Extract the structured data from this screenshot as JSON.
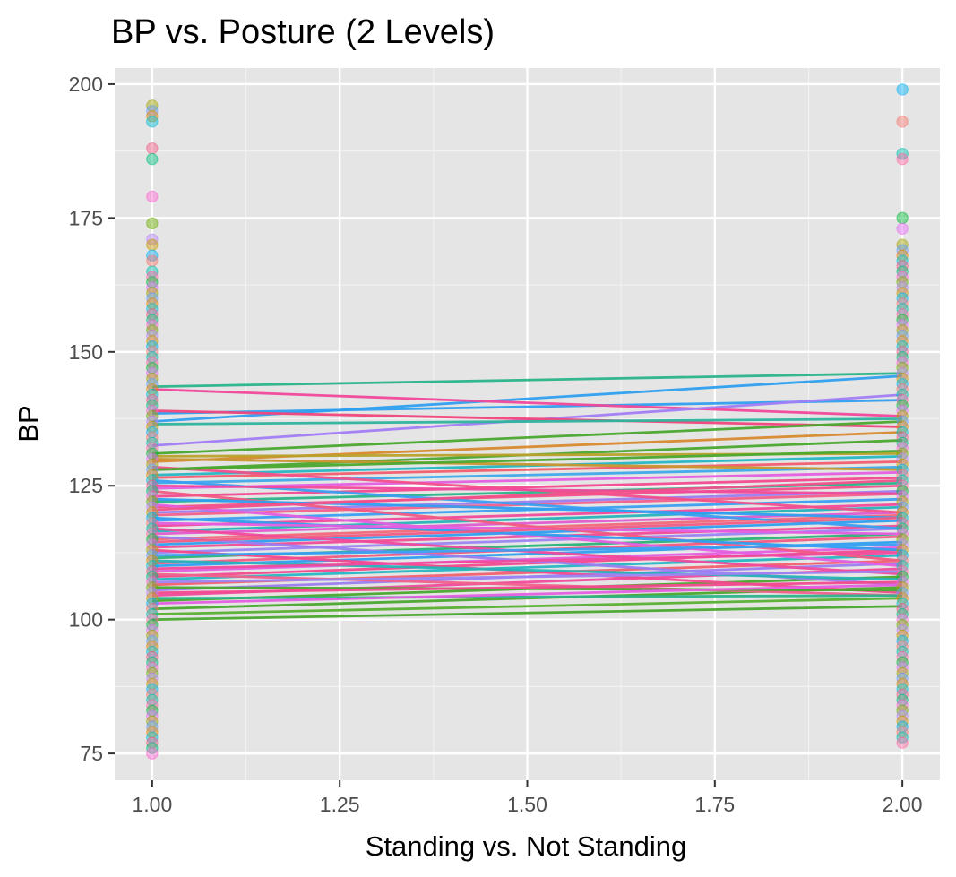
{
  "chart_data": {
    "type": "line",
    "title": "BP vs. Posture (2 Levels)",
    "xlabel": "Standing vs. Not Standing",
    "ylabel": "BP",
    "xlim": [
      0.95,
      2.05
    ],
    "ylim": [
      70,
      203
    ],
    "x_ticks": [
      "1.00",
      "1.25",
      "1.50",
      "1.75",
      "2.00"
    ],
    "y_ticks": [
      "75",
      "100",
      "125",
      "150",
      "175",
      "200"
    ],
    "grid": true,
    "legend": "none",
    "x": [
      1,
      2
    ],
    "series": [
      {
        "values": [
          143.5,
          146.0
        ],
        "color": "#2ab38a"
      },
      {
        "values": [
          137.0,
          145.5
        ],
        "color": "#2f9ff0"
      },
      {
        "values": [
          138.5,
          141.0
        ],
        "color": "#2f9ff0"
      },
      {
        "values": [
          143.0,
          138.0
        ],
        "color": "#f0489a"
      },
      {
        "values": [
          132.5,
          142.0
        ],
        "color": "#a27df5"
      },
      {
        "values": [
          139.0,
          136.0
        ],
        "color": "#f0467c"
      },
      {
        "values": [
          131.0,
          137.0
        ],
        "color": "#4aa82e"
      },
      {
        "values": [
          136.5,
          137.5
        ],
        "color": "#2eb39e"
      },
      {
        "values": [
          129.5,
          135.0
        ],
        "color": "#d88a2e"
      },
      {
        "values": [
          128.0,
          133.5
        ],
        "color": "#4aa82e"
      },
      {
        "values": [
          130.5,
          131.0
        ],
        "color": "#b8a12a"
      },
      {
        "values": [
          127.0,
          130.5
        ],
        "color": "#26b7c4"
      },
      {
        "values": [
          126.5,
          129.5
        ],
        "color": "#f25c6e"
      },
      {
        "values": [
          125.5,
          128.5
        ],
        "color": "#3fa9ea"
      },
      {
        "values": [
          124.5,
          127.5
        ],
        "color": "#e45ee0"
      },
      {
        "values": [
          123.0,
          126.5
        ],
        "color": "#f24a8e"
      },
      {
        "values": [
          122.0,
          125.5
        ],
        "color": "#2bb38a"
      },
      {
        "values": [
          121.0,
          125.0
        ],
        "color": "#f2508a"
      },
      {
        "values": [
          120.0,
          124.0
        ],
        "color": "#9b7df0"
      },
      {
        "values": [
          119.5,
          123.5
        ],
        "color": "#f2608c"
      },
      {
        "values": [
          118.5,
          122.5
        ],
        "color": "#3a9ff2"
      },
      {
        "values": [
          117.5,
          121.5
        ],
        "color": "#f04a9c"
      },
      {
        "values": [
          116.5,
          121.0
        ],
        "color": "#26b3b8"
      },
      {
        "values": [
          116.0,
          120.0
        ],
        "color": "#e25ad0"
      },
      {
        "values": [
          115.0,
          119.5
        ],
        "color": "#f2687a"
      },
      {
        "values": [
          114.0,
          118.5
        ],
        "color": "#2f9ff0"
      },
      {
        "values": [
          113.5,
          117.5
        ],
        "color": "#f04c96"
      },
      {
        "values": [
          112.5,
          117.0
        ],
        "color": "#9b84f2"
      },
      {
        "values": [
          111.5,
          116.0
        ],
        "color": "#2bb378"
      },
      {
        "values": [
          110.5,
          115.5
        ],
        "color": "#f25a82"
      },
      {
        "values": [
          110.0,
          114.5
        ],
        "color": "#2f9ff0"
      },
      {
        "values": [
          109.0,
          113.5
        ],
        "color": "#e45ee0"
      },
      {
        "values": [
          108.0,
          113.0
        ],
        "color": "#f24a8e"
      },
      {
        "values": [
          107.5,
          112.0
        ],
        "color": "#26b7c4"
      },
      {
        "values": [
          106.5,
          111.0
        ],
        "color": "#f26070"
      },
      {
        "values": [
          105.5,
          110.5
        ],
        "color": "#9b7df0"
      },
      {
        "values": [
          104.5,
          109.5
        ],
        "color": "#f04a9c"
      },
      {
        "values": [
          103.5,
          108.0
        ],
        "color": "#4aa82e"
      },
      {
        "values": [
          102.0,
          106.0
        ],
        "color": "#4aa82e"
      },
      {
        "values": [
          101.0,
          104.0
        ],
        "color": "#58b030"
      },
      {
        "values": [
          100.0,
          102.5
        ],
        "color": "#4aa82e"
      },
      {
        "values": [
          128.5,
          120.0
        ],
        "color": "#f2508a"
      },
      {
        "values": [
          126.0,
          117.0
        ],
        "color": "#3a9ff2"
      },
      {
        "values": [
          124.0,
          111.0
        ],
        "color": "#f25a82"
      },
      {
        "values": [
          121.5,
          110.0
        ],
        "color": "#e45ee0"
      },
      {
        "values": [
          119.0,
          113.0
        ],
        "color": "#2f9ff0"
      },
      {
        "values": [
          117.0,
          108.5
        ],
        "color": "#f04a9c"
      },
      {
        "values": [
          115.5,
          106.5
        ],
        "color": "#9b7df0"
      },
      {
        "values": [
          113.0,
          105.0
        ],
        "color": "#f24a8e"
      },
      {
        "values": [
          111.0,
          107.5
        ],
        "color": "#26b3b8"
      },
      {
        "values": [
          108.5,
          104.5
        ],
        "color": "#f2608c"
      },
      {
        "values": [
          106.0,
          105.5
        ],
        "color": "#4aa82e"
      },
      {
        "values": [
          104.0,
          104.5
        ],
        "color": "#2bb38a"
      },
      {
        "values": [
          130.0,
          128.0
        ],
        "color": "#c8962e"
      },
      {
        "values": [
          128.0,
          131.5
        ],
        "color": "#4aa82e"
      },
      {
        "values": [
          125.0,
          123.5
        ],
        "color": "#f04a9c"
      },
      {
        "values": [
          122.5,
          119.0
        ],
        "color": "#2f9ff0"
      },
      {
        "values": [
          120.5,
          126.0
        ],
        "color": "#f2508a"
      },
      {
        "values": [
          118.0,
          116.0
        ],
        "color": "#e45ee0"
      },
      {
        "values": [
          114.5,
          119.0
        ],
        "color": "#f25a82"
      },
      {
        "values": [
          112.0,
          114.0
        ],
        "color": "#3a9ff2"
      },
      {
        "values": [
          109.5,
          112.5
        ],
        "color": "#f04a9c"
      },
      {
        "values": [
          107.0,
          109.0
        ],
        "color": "#9b84f2"
      },
      {
        "values": [
          105.0,
          107.0
        ],
        "color": "#f24a8e"
      },
      {
        "values": [
          103.0,
          106.5
        ],
        "color": "#e45ee0"
      }
    ],
    "points_x1": [
      196,
      195,
      194,
      193,
      188,
      186,
      179,
      174,
      171,
      170,
      168,
      167,
      165,
      164,
      163,
      162,
      161,
      160,
      159,
      158,
      157,
      156,
      155,
      154,
      153,
      152,
      151,
      150,
      149,
      148,
      147,
      146,
      145,
      144,
      143,
      142,
      141,
      140,
      139,
      138,
      137,
      136,
      135,
      134,
      133,
      132,
      131,
      130,
      129,
      128,
      127,
      126,
      125,
      124,
      123,
      122,
      121,
      120,
      119,
      118,
      117,
      116,
      115,
      114,
      113,
      112,
      111,
      110,
      109,
      108,
      107,
      106,
      105,
      104,
      103,
      102,
      101,
      100,
      99,
      98,
      97,
      96,
      95,
      94,
      93,
      92,
      91,
      90,
      89,
      88,
      87,
      86,
      85,
      84,
      83,
      82,
      81,
      80,
      79,
      78,
      77,
      76,
      75
    ],
    "points_x2": [
      199,
      193,
      187,
      186,
      175,
      173,
      170,
      169,
      168,
      167,
      166,
      165,
      164,
      163,
      162,
      161,
      160,
      159,
      158,
      157,
      156,
      155,
      154,
      153,
      152,
      151,
      150,
      149,
      148,
      147,
      146,
      145,
      144,
      143,
      142,
      141,
      140,
      139,
      138,
      137,
      136,
      135,
      134,
      133,
      132,
      131,
      130,
      129,
      128,
      127,
      126,
      125,
      124,
      123,
      122,
      121,
      120,
      119,
      118,
      117,
      116,
      115,
      114,
      113,
      112,
      111,
      110,
      109,
      108,
      107,
      106,
      105,
      104,
      103,
      102,
      101,
      100,
      99,
      98,
      97,
      96,
      95,
      94,
      93,
      92,
      91,
      90,
      89,
      88,
      87,
      86,
      85,
      84,
      83,
      82,
      81,
      80,
      79,
      78,
      77
    ],
    "palette": [
      "#f8766d",
      "#e58700",
      "#c99800",
      "#a3a500",
      "#6bb100",
      "#00ba38",
      "#00bf7d",
      "#00c0af",
      "#00bcd8",
      "#00b0f6",
      "#619cff",
      "#b983ff",
      "#e76bf3",
      "#fd61d1",
      "#ff67a4",
      "#f25a82"
    ],
    "colors": {
      "panel_background": "#e5e5e5",
      "grid_major": "#ffffff",
      "grid_minor": "#f2f2f2",
      "tick_text": "#4d4d4d",
      "tick_mark": "#333333"
    }
  }
}
